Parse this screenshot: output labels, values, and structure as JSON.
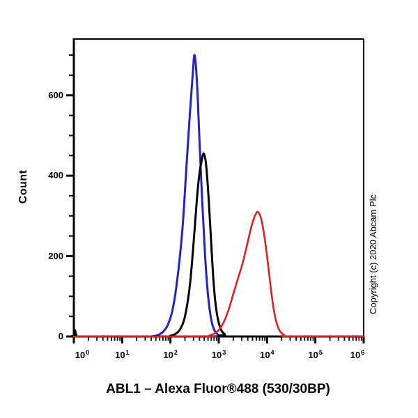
{
  "figure": {
    "title": "ABL1 – Alexa Fluor®488 (530/30BP)",
    "watermark": "Copyright (c) 2020 Abcam Plc",
    "background": "#ffffff"
  },
  "chart_data": {
    "type": "line",
    "subtype": "flow-cytometry-overlay-histogram",
    "title": "ABL1 – Alexa Fluor®488 (530/30BP)",
    "xlabel": "",
    "ylabel": "Count",
    "grid": false,
    "legend": false,
    "axis_color": "#000000",
    "x_scale": "log10",
    "xlim_log": [
      0,
      6
    ],
    "x_tick_base": "10",
    "x_tick_exponents": [
      "0",
      "1",
      "2",
      "3",
      "4",
      "5",
      "6"
    ],
    "ylim": [
      0,
      740
    ],
    "y_major_ticks": [
      0,
      200,
      400,
      600
    ],
    "y_minor_step": 50,
    "series": [
      {
        "name": "blue-histogram",
        "color": "#2222cc",
        "stroke_width": 3,
        "peak": {
          "x_approx": 320,
          "count": 700
        },
        "points_log_count": [
          [
            0,
            0
          ],
          [
            1.5,
            0
          ],
          [
            1.65,
            1
          ],
          [
            1.75,
            4
          ],
          [
            1.85,
            12
          ],
          [
            1.95,
            30
          ],
          [
            2.05,
            70
          ],
          [
            2.15,
            150
          ],
          [
            2.25,
            270
          ],
          [
            2.33,
            420
          ],
          [
            2.4,
            550
          ],
          [
            2.46,
            650
          ],
          [
            2.5,
            700
          ],
          [
            2.55,
            630
          ],
          [
            2.6,
            490
          ],
          [
            2.66,
            330
          ],
          [
            2.72,
            195
          ],
          [
            2.78,
            100
          ],
          [
            2.84,
            45
          ],
          [
            2.9,
            18
          ],
          [
            2.97,
            6
          ],
          [
            3.06,
            1
          ],
          [
            3.15,
            0
          ],
          [
            6,
            0
          ]
        ]
      },
      {
        "name": "black-histogram",
        "color": "#000000",
        "stroke_width": 3,
        "peak": {
          "x_approx": 490,
          "count": 455
        },
        "points_log_count": [
          [
            0,
            0
          ],
          [
            0.02,
            16
          ],
          [
            0.05,
            3
          ],
          [
            0.09,
            0
          ],
          [
            1.9,
            0
          ],
          [
            2.0,
            2
          ],
          [
            2.1,
            6
          ],
          [
            2.2,
            18
          ],
          [
            2.3,
            50
          ],
          [
            2.4,
            125
          ],
          [
            2.48,
            235
          ],
          [
            2.55,
            345
          ],
          [
            2.6,
            405
          ],
          [
            2.65,
            440
          ],
          [
            2.69,
            455
          ],
          [
            2.74,
            425
          ],
          [
            2.79,
            345
          ],
          [
            2.84,
            240
          ],
          [
            2.89,
            140
          ],
          [
            2.94,
            75
          ],
          [
            3.0,
            34
          ],
          [
            3.06,
            14
          ],
          [
            3.13,
            5
          ],
          [
            3.22,
            0
          ],
          [
            6,
            0
          ]
        ]
      },
      {
        "name": "red-histogram",
        "color": "#dd2222",
        "stroke_width": 2.6,
        "peak": {
          "x_approx": 6500,
          "count": 310
        },
        "points_log_count": [
          [
            0,
            0
          ],
          [
            2.7,
            0
          ],
          [
            2.8,
            2
          ],
          [
            2.9,
            7
          ],
          [
            3.0,
            16
          ],
          [
            3.1,
            35
          ],
          [
            3.2,
            65
          ],
          [
            3.3,
            105
          ],
          [
            3.4,
            145
          ],
          [
            3.5,
            185
          ],
          [
            3.6,
            235
          ],
          [
            3.68,
            275
          ],
          [
            3.75,
            300
          ],
          [
            3.81,
            310
          ],
          [
            3.88,
            292
          ],
          [
            3.95,
            245
          ],
          [
            4.02,
            180
          ],
          [
            4.08,
            118
          ],
          [
            4.14,
            66
          ],
          [
            4.2,
            33
          ],
          [
            4.27,
            13
          ],
          [
            4.36,
            3
          ],
          [
            4.45,
            0
          ],
          [
            6,
            0
          ]
        ]
      }
    ]
  }
}
